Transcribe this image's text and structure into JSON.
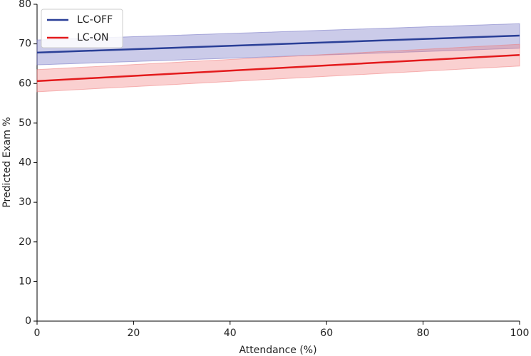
{
  "chart_data": {
    "type": "line",
    "xlabel": "Attendance (%)",
    "ylabel": "Predicted Exam %",
    "x": [
      0,
      100
    ],
    "series": [
      {
        "name": "LC-OFF",
        "color": "#2a3f97",
        "band_color": "#6a6ac0",
        "values": [
          67.8,
          72.1
        ],
        "lower": [
          64.7,
          68.9
        ],
        "upper": [
          71.0,
          75.1
        ]
      },
      {
        "name": "LC-ON",
        "color": "#e31a1c",
        "band_color": "#f07878",
        "values": [
          60.6,
          67.2
        ],
        "lower": [
          57.9,
          64.4
        ],
        "upper": [
          63.5,
          69.9
        ]
      }
    ],
    "xlim": [
      0,
      100
    ],
    "xticks": [
      0,
      20,
      40,
      60,
      80,
      100
    ],
    "ylim": [
      0,
      80
    ],
    "yticks": [
      0,
      10,
      20,
      30,
      40,
      50,
      60,
      70,
      80
    ],
    "legend": "upper-left",
    "grid": false
  }
}
